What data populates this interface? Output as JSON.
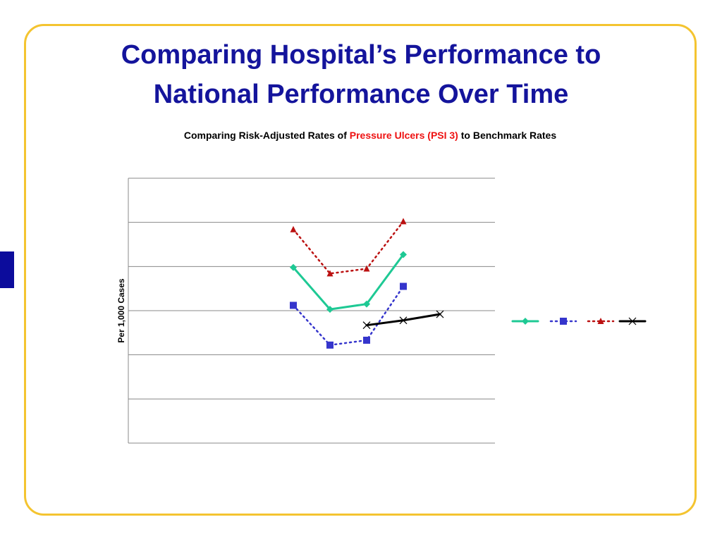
{
  "slide": {
    "title_line1": "Comparing Hospital’s Performance to",
    "title_line2": "National Performance Over Time",
    "subtitle_pre": "Comparing Risk-Adjusted Rates of ",
    "subtitle_highlight": "Pressure Ulcers (PSI 3)",
    "subtitle_post": " to Benchmark Rates"
  },
  "colors": {
    "title": "#14149c",
    "highlight": "#ee1111",
    "frame": "#f4c430",
    "side_tab": "#0c0c9c"
  },
  "chart_data": {
    "type": "line",
    "ylabel": "Per 1,000 Cases",
    "ylim": [
      0,
      6
    ],
    "grid": true,
    "legend_position": "right",
    "x": [
      1,
      2,
      3,
      4,
      5,
      6,
      7,
      8,
      9,
      10
    ],
    "series": [
      {
        "values": [
          null,
          null,
          null,
          null,
          3.98,
          3.03,
          3.15,
          4.27,
          null,
          null
        ],
        "color": "#1ec994",
        "marker": "diamond",
        "dash": "solid"
      },
      {
        "values": [
          null,
          null,
          null,
          null,
          3.12,
          2.22,
          2.33,
          3.55,
          null,
          null
        ],
        "color": "#3535cc",
        "marker": "square",
        "dash": "dotted"
      },
      {
        "values": [
          null,
          null,
          null,
          null,
          4.84,
          3.84,
          3.95,
          5.02,
          null,
          null
        ],
        "color": "#bb1111",
        "marker": "triangle",
        "dash": "dotted"
      },
      {
        "values": [
          null,
          null,
          null,
          null,
          null,
          null,
          2.67,
          2.78,
          2.92,
          null
        ],
        "color": "#000000",
        "marker": "x",
        "dash": "solid"
      }
    ]
  }
}
